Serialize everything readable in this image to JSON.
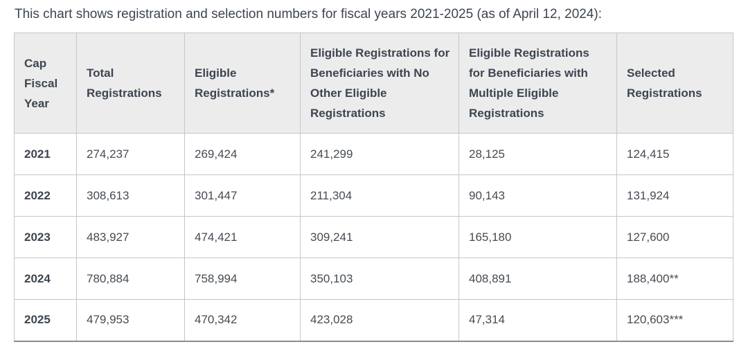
{
  "intro_text": "This chart shows registration and selection numbers for fiscal years 2021-2025 (as of April 12, 2024):",
  "table": {
    "columns": [
      "Cap Fiscal Year",
      "Total Registrations",
      "Eligible Registrations*",
      "Eligible Registrations for Beneficiaries with No Other Eligible Registrations",
      "Eligible Registrations for Beneficiaries with Multiple Eligible Registrations",
      "Selected Registrations"
    ],
    "rows": [
      {
        "year": "2021",
        "values": [
          "274,237",
          "269,424",
          "241,299",
          "28,125",
          "124,415"
        ]
      },
      {
        "year": "2022",
        "values": [
          "308,613",
          "301,447",
          "211,304",
          "90,143",
          "131,924"
        ]
      },
      {
        "year": "2023",
        "values": [
          "483,927",
          "474,421",
          "309,241",
          "165,180",
          "127,600"
        ]
      },
      {
        "year": "2024",
        "values": [
          "780,884",
          "758,994",
          "350,103",
          "408,891",
          "188,400**"
        ]
      },
      {
        "year": "2025",
        "values": [
          "479,953",
          "470,342",
          "423,028",
          "47,314",
          "120,603***"
        ]
      }
    ]
  },
  "chart_data": {
    "type": "table",
    "title": "This chart shows registration and selection numbers for fiscal years 2021-2025 (as of April 12, 2024):",
    "categories": [
      "2021",
      "2022",
      "2023",
      "2024",
      "2025"
    ],
    "series": [
      {
        "name": "Total Registrations",
        "values": [
          274237,
          308613,
          483927,
          780884,
          479953
        ]
      },
      {
        "name": "Eligible Registrations*",
        "values": [
          269424,
          301447,
          474421,
          758994,
          470342
        ]
      },
      {
        "name": "Eligible Registrations for Beneficiaries with No Other Eligible Registrations",
        "values": [
          241299,
          211304,
          309241,
          350103,
          423028
        ]
      },
      {
        "name": "Eligible Registrations for Beneficiaries with Multiple Eligible Registrations",
        "values": [
          28125,
          90143,
          165180,
          408891,
          47314
        ]
      },
      {
        "name": "Selected Registrations",
        "values": [
          124415,
          131924,
          127600,
          188400,
          120603
        ]
      }
    ],
    "value_suffixes": {
      "Selected Registrations": {
        "2024": "**",
        "2025": "***"
      }
    }
  },
  "colors": {
    "text": "#3d4551",
    "header_background": "#ececec",
    "cell_border": "#c6c6c6",
    "outer_border": "#b3b3b3",
    "bottom_border": "#8c8c8c",
    "page_background": "#ffffff"
  }
}
